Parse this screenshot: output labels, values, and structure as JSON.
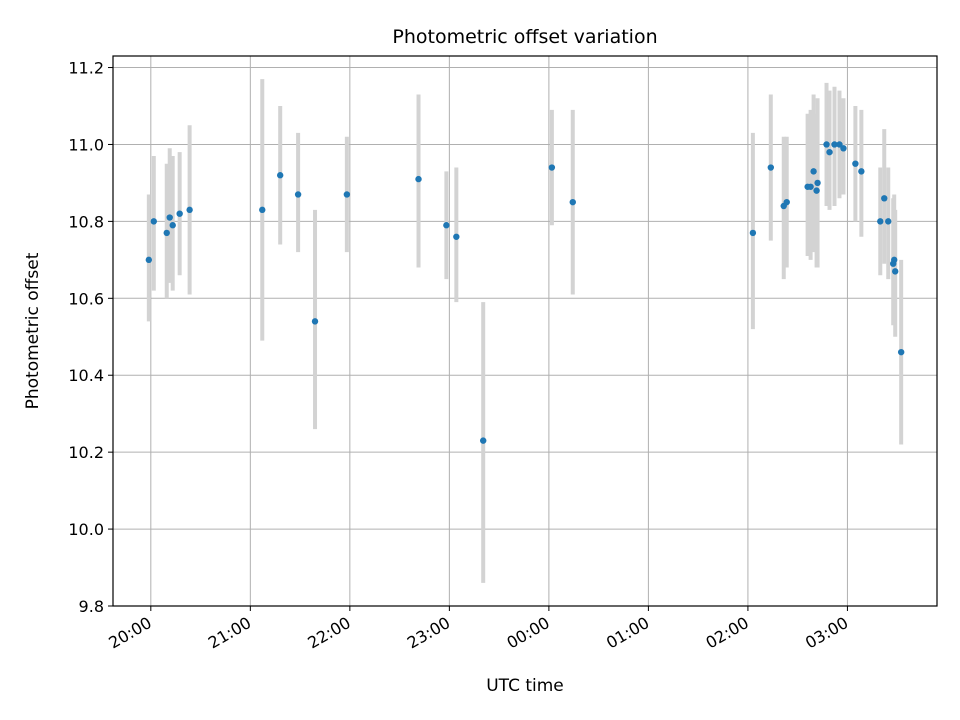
{
  "chart_data": {
    "type": "scatter",
    "title": "Photometric offset variation",
    "xlabel": "UTC time",
    "ylabel": "Photometric offset",
    "x_unit": "hours since 20:00 UTC",
    "xlim": [
      -0.38,
      7.9
    ],
    "ylim": [
      9.8,
      11.23
    ],
    "grid": true,
    "colors": {
      "point": "#1f77b4",
      "errorbar": "#d3d3d3",
      "grid": "#b0b0b0"
    },
    "x_ticks": [
      {
        "value": 0,
        "label": "20:00"
      },
      {
        "value": 1,
        "label": "21:00"
      },
      {
        "value": 2,
        "label": "22:00"
      },
      {
        "value": 3,
        "label": "23:00"
      },
      {
        "value": 4,
        "label": "00:00"
      },
      {
        "value": 5,
        "label": "01:00"
      },
      {
        "value": 6,
        "label": "02:00"
      },
      {
        "value": 7,
        "label": "03:00"
      }
    ],
    "y_ticks": [
      {
        "value": 9.8,
        "label": "9.8"
      },
      {
        "value": 10.0,
        "label": "10.0"
      },
      {
        "value": 10.2,
        "label": "10.2"
      },
      {
        "value": 10.4,
        "label": "10.4"
      },
      {
        "value": 10.6,
        "label": "10.6"
      },
      {
        "value": 10.8,
        "label": "10.8"
      },
      {
        "value": 11.0,
        "label": "11.0"
      },
      {
        "value": 11.2,
        "label": "11.2"
      }
    ],
    "points": [
      {
        "x": -0.02,
        "y": 10.7,
        "yerr_low": 10.54,
        "yerr_high": 10.87
      },
      {
        "x": 0.03,
        "y": 10.8,
        "yerr_low": 10.62,
        "yerr_high": 10.97
      },
      {
        "x": 0.16,
        "y": 10.77,
        "yerr_low": 10.6,
        "yerr_high": 10.95
      },
      {
        "x": 0.19,
        "y": 10.81,
        "yerr_low": 10.64,
        "yerr_high": 10.99
      },
      {
        "x": 0.22,
        "y": 10.79,
        "yerr_low": 10.62,
        "yerr_high": 10.97
      },
      {
        "x": 0.29,
        "y": 10.82,
        "yerr_low": 10.66,
        "yerr_high": 10.98
      },
      {
        "x": 0.39,
        "y": 10.83,
        "yerr_low": 10.61,
        "yerr_high": 11.05
      },
      {
        "x": 1.12,
        "y": 10.83,
        "yerr_low": 10.49,
        "yerr_high": 11.17
      },
      {
        "x": 1.3,
        "y": 10.92,
        "yerr_low": 10.74,
        "yerr_high": 11.1
      },
      {
        "x": 1.48,
        "y": 10.87,
        "yerr_low": 10.72,
        "yerr_high": 11.03
      },
      {
        "x": 1.65,
        "y": 10.54,
        "yerr_low": 10.26,
        "yerr_high": 10.83
      },
      {
        "x": 1.97,
        "y": 10.87,
        "yerr_low": 10.72,
        "yerr_high": 11.02
      },
      {
        "x": 2.69,
        "y": 10.91,
        "yerr_low": 10.68,
        "yerr_high": 11.13
      },
      {
        "x": 2.97,
        "y": 10.79,
        "yerr_low": 10.65,
        "yerr_high": 10.93
      },
      {
        "x": 3.07,
        "y": 10.76,
        "yerr_low": 10.59,
        "yerr_high": 10.94
      },
      {
        "x": 3.34,
        "y": 10.23,
        "yerr_low": 9.86,
        "yerr_high": 10.59
      },
      {
        "x": 4.03,
        "y": 10.94,
        "yerr_low": 10.79,
        "yerr_high": 11.09
      },
      {
        "x": 4.24,
        "y": 10.85,
        "yerr_low": 10.61,
        "yerr_high": 11.09
      },
      {
        "x": 6.05,
        "y": 10.77,
        "yerr_low": 10.52,
        "yerr_high": 11.03
      },
      {
        "x": 6.23,
        "y": 10.94,
        "yerr_low": 10.75,
        "yerr_high": 11.13
      },
      {
        "x": 6.36,
        "y": 10.84,
        "yerr_low": 10.65,
        "yerr_high": 11.02
      },
      {
        "x": 6.39,
        "y": 10.85,
        "yerr_low": 10.68,
        "yerr_high": 11.02
      },
      {
        "x": 6.6,
        "y": 10.89,
        "yerr_low": 10.71,
        "yerr_high": 11.08
      },
      {
        "x": 6.63,
        "y": 10.89,
        "yerr_low": 10.7,
        "yerr_high": 11.09
      },
      {
        "x": 6.66,
        "y": 10.93,
        "yerr_low": 10.72,
        "yerr_high": 11.13
      },
      {
        "x": 6.69,
        "y": 10.88,
        "yerr_low": 10.68,
        "yerr_high": 11.08
      },
      {
        "x": 6.7,
        "y": 10.9,
        "yerr_low": 10.68,
        "yerr_high": 11.12
      },
      {
        "x": 6.79,
        "y": 11.0,
        "yerr_low": 10.84,
        "yerr_high": 11.16
      },
      {
        "x": 6.82,
        "y": 10.98,
        "yerr_low": 10.83,
        "yerr_high": 11.14
      },
      {
        "x": 6.87,
        "y": 11.0,
        "yerr_low": 10.84,
        "yerr_high": 11.15
      },
      {
        "x": 6.92,
        "y": 11.0,
        "yerr_low": 10.86,
        "yerr_high": 11.14
      },
      {
        "x": 6.96,
        "y": 10.99,
        "yerr_low": 10.87,
        "yerr_high": 11.12
      },
      {
        "x": 7.08,
        "y": 10.95,
        "yerr_low": 10.8,
        "yerr_high": 11.1
      },
      {
        "x": 7.14,
        "y": 10.93,
        "yerr_low": 10.76,
        "yerr_high": 11.09
      },
      {
        "x": 7.33,
        "y": 10.8,
        "yerr_low": 10.66,
        "yerr_high": 10.94
      },
      {
        "x": 7.37,
        "y": 10.86,
        "yerr_low": 10.69,
        "yerr_high": 11.04
      },
      {
        "x": 7.41,
        "y": 10.8,
        "yerr_low": 10.65,
        "yerr_high": 10.94
      },
      {
        "x": 7.46,
        "y": 10.69,
        "yerr_low": 10.53,
        "yerr_high": 10.86
      },
      {
        "x": 7.47,
        "y": 10.7,
        "yerr_low": 10.54,
        "yerr_high": 10.87
      },
      {
        "x": 7.48,
        "y": 10.67,
        "yerr_low": 10.5,
        "yerr_high": 10.83
      },
      {
        "x": 7.54,
        "y": 10.46,
        "yerr_low": 10.22,
        "yerr_high": 10.7
      }
    ]
  }
}
